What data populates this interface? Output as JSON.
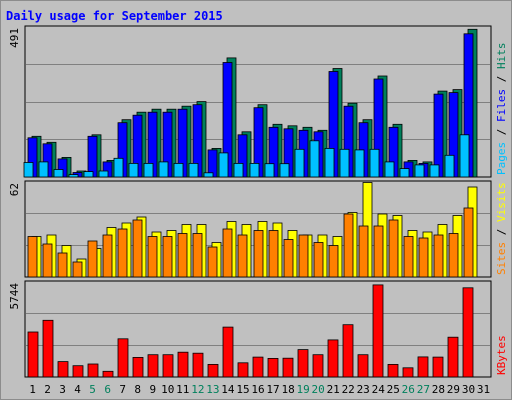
{
  "chart_data": [
    {
      "type": "bar",
      "title": "Daily usage for September 2015",
      "panel": "pages-files-hits",
      "y_max_label": "491",
      "ylim": [
        0,
        491
      ],
      "categories": [
        "1",
        "2",
        "3",
        "4",
        "5",
        "6",
        "7",
        "8",
        "9",
        "10",
        "11",
        "12",
        "13",
        "14",
        "15",
        "16",
        "17",
        "18",
        "19",
        "20",
        "21",
        "22",
        "23",
        "24",
        "25",
        "26",
        "27",
        "28",
        "29",
        "30",
        "31"
      ],
      "series": [
        {
          "name": "Hits",
          "color": "#00805c",
          "values": [
            135,
            115,
            65,
            20,
            140,
            55,
            190,
            215,
            225,
            225,
            235,
            250,
            95,
            395,
            150,
            240,
            175,
            170,
            165,
            155,
            360,
            245,
            190,
            335,
            175,
            55,
            50,
            285,
            290,
            490,
            0
          ]
        },
        {
          "name": "Files",
          "color": "#0000ff",
          "values": [
            130,
            110,
            60,
            15,
            135,
            50,
            180,
            205,
            215,
            215,
            225,
            240,
            90,
            380,
            140,
            230,
            165,
            160,
            155,
            150,
            350,
            235,
            180,
            325,
            165,
            50,
            45,
            275,
            280,
            475,
            0
          ]
        },
        {
          "name": "Pages",
          "color": "#00c0ff",
          "values": [
            48,
            50,
            25,
            8,
            18,
            20,
            62,
            45,
            45,
            50,
            45,
            45,
            14,
            80,
            45,
            45,
            44,
            44,
            92,
            120,
            95,
            92,
            90,
            92,
            50,
            28,
            40,
            40,
            72,
            140,
            0
          ]
        }
      ],
      "legend_text": [
        "Pages",
        " / ",
        "Files",
        " / ",
        "Hits"
      ]
    },
    {
      "type": "bar",
      "panel": "sites-visits",
      "y_max_label": "62",
      "ylim": [
        0,
        62
      ],
      "series": [
        {
          "name": "Visits",
          "color": "#ffff00",
          "values": [
            27,
            28,
            21,
            12,
            19,
            33,
            36,
            40,
            30,
            31,
            35,
            35,
            23,
            37,
            35,
            37,
            36,
            31,
            28,
            28,
            27,
            43,
            63,
            42,
            41,
            31,
            30,
            35,
            41,
            60,
            0
          ]
        },
        {
          "name": "Sites",
          "color": "#ff8000",
          "values": [
            27,
            22,
            16,
            10,
            24,
            28,
            32,
            38,
            27,
            27,
            29,
            29,
            20,
            32,
            28,
            31,
            31,
            25,
            28,
            23,
            21,
            42,
            34,
            34,
            38,
            27,
            26,
            28,
            29,
            46,
            0
          ]
        }
      ],
      "legend_text": [
        "Sites",
        " / ",
        "Visits"
      ]
    },
    {
      "type": "bar",
      "panel": "kbytes",
      "y_max_label": "5744",
      "ylim": [
        0,
        5744
      ],
      "series": [
        {
          "name": "KBytes",
          "color": "#ff0000",
          "values": [
            2780,
            3500,
            950,
            700,
            800,
            350,
            2360,
            1210,
            1380,
            1380,
            1530,
            1470,
            780,
            3080,
            880,
            1230,
            1150,
            1160,
            1690,
            1380,
            2290,
            3230,
            1380,
            5690,
            780,
            570,
            1240,
            1230,
            2460,
            5510,
            0
          ]
        }
      ],
      "legend_text": [
        "KBytes"
      ]
    }
  ],
  "x_labels": [
    {
      "text": "1",
      "color": "#000000"
    },
    {
      "text": "2",
      "color": "#000000"
    },
    {
      "text": "3",
      "color": "#000000"
    },
    {
      "text": "4",
      "color": "#000000"
    },
    {
      "text": "5",
      "color": "#00805c"
    },
    {
      "text": "6",
      "color": "#00805c"
    },
    {
      "text": "7",
      "color": "#000000"
    },
    {
      "text": "8",
      "color": "#000000"
    },
    {
      "text": "9",
      "color": "#000000"
    },
    {
      "text": "10",
      "color": "#000000"
    },
    {
      "text": "11",
      "color": "#000000"
    },
    {
      "text": "12",
      "color": "#00805c"
    },
    {
      "text": "13",
      "color": "#00805c"
    },
    {
      "text": "14",
      "color": "#000000"
    },
    {
      "text": "15",
      "color": "#000000"
    },
    {
      "text": "16",
      "color": "#000000"
    },
    {
      "text": "17",
      "color": "#000000"
    },
    {
      "text": "18",
      "color": "#000000"
    },
    {
      "text": "19",
      "color": "#00805c"
    },
    {
      "text": "20",
      "color": "#00805c"
    },
    {
      "text": "21",
      "color": "#000000"
    },
    {
      "text": "22",
      "color": "#000000"
    },
    {
      "text": "23",
      "color": "#000000"
    },
    {
      "text": "24",
      "color": "#000000"
    },
    {
      "text": "25",
      "color": "#000000"
    },
    {
      "text": "26",
      "color": "#00805c"
    },
    {
      "text": "27",
      "color": "#00805c"
    },
    {
      "text": "28",
      "color": "#000000"
    },
    {
      "text": "29",
      "color": "#000000"
    },
    {
      "text": "30",
      "color": "#000000"
    },
    {
      "text": "31",
      "color": "#000000"
    }
  ],
  "colors": {
    "title": "#0000ff",
    "panel_bg": "#c0c0c0",
    "grid": "#808080",
    "separator": "#000000"
  }
}
